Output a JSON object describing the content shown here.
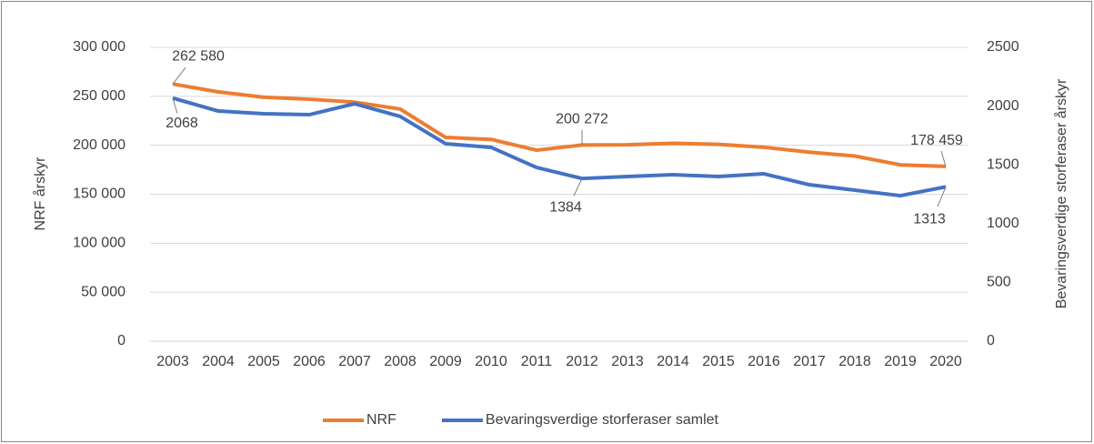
{
  "chart_data": {
    "type": "line",
    "y_label": "NRF årskyr",
    "y2_label": "Bevaringsverdige storferaser årskyr",
    "categories": [
      "2003",
      "2004",
      "2005",
      "2006",
      "2007",
      "2008",
      "2009",
      "2010",
      "2011",
      "2012",
      "2013",
      "2014",
      "2015",
      "2016",
      "2017",
      "2018",
      "2019",
      "2020"
    ],
    "ylim": [
      0,
      300000
    ],
    "yticks": [
      0,
      {
        "value": 50000,
        "label": "50 000"
      },
      {
        "value": 100000,
        "label": "100 000"
      },
      {
        "value": 150000,
        "label": "150 000"
      },
      {
        "value": 200000,
        "label": "200 000"
      },
      {
        "value": 250000,
        "label": "250 000"
      },
      {
        "value": 300000,
        "label": "300 000"
      }
    ],
    "y2lim": [
      0,
      2500
    ],
    "y2ticks": [
      0,
      500,
      1000,
      1500,
      2000,
      2500
    ],
    "grid": true,
    "legend": "bottom",
    "series": [
      {
        "name": "NRF",
        "color": "#ed7d31",
        "values": [
          262580,
          254500,
          249000,
          247000,
          244000,
          237000,
          208000,
          206000,
          195000,
          200272,
          200500,
          202000,
          201000,
          198000,
          193000,
          189000,
          180000,
          178459
        ],
        "value_labels": [
          "262 580",
          null,
          null,
          null,
          null,
          null,
          null,
          null,
          null,
          "200 272",
          null,
          null,
          null,
          null,
          null,
          null,
          null,
          "178 459"
        ]
      },
      {
        "name": "Bevaringsverdige storferaser samlet",
        "color": "#4472c4",
        "axis": "y2",
        "values": [
          2068,
          1958,
          1935,
          1927,
          2020,
          1912,
          1680,
          1649,
          1478,
          1384,
          1401,
          1416,
          1401,
          1424,
          1331,
          1285,
          1238,
          1313
        ],
        "value_labels": [
          "2068",
          null,
          null,
          null,
          null,
          null,
          null,
          null,
          null,
          "1384",
          null,
          null,
          null,
          null,
          null,
          null,
          null,
          "1313"
        ]
      }
    ]
  }
}
